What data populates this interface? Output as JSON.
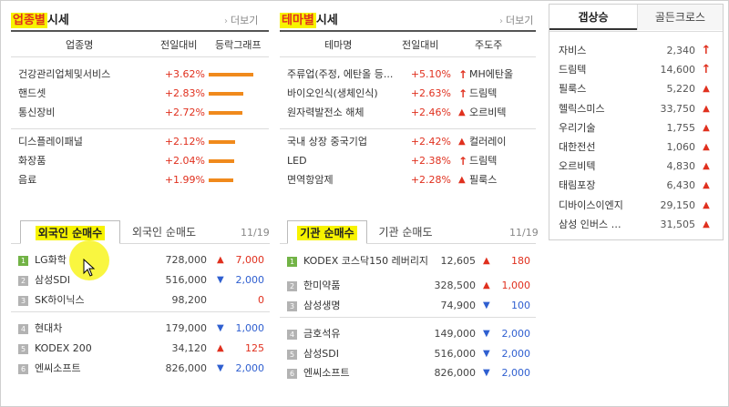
{
  "sector": {
    "title": "업종별시세",
    "title_hl": "업종별",
    "title_rest": "시세",
    "more": "더보기",
    "columns": [
      "업종명",
      "전일대비",
      "등락그래프"
    ],
    "rows": [
      {
        "name": "건강관리업체및서비스",
        "change": "+3.62%",
        "level": 0.94
      },
      {
        "name": "핸드셋",
        "change": "+2.83%",
        "level": 0.74
      },
      {
        "name": "통신장비",
        "change": "+2.72%",
        "level": 0.71
      },
      {
        "name": "디스플레이패널",
        "change": "+2.12%",
        "level": 0.55
      },
      {
        "name": "화장품",
        "change": "+2.04%",
        "level": 0.53
      },
      {
        "name": "음료",
        "change": "+1.99%",
        "level": 0.52
      }
    ]
  },
  "theme": {
    "title_hl": "테마별",
    "title_rest": "시세",
    "more": "더보기",
    "columns": [
      "테마명",
      "전일대비",
      "주도주"
    ],
    "rows": [
      {
        "name": "주류업(주정, 에탄올 등...",
        "change": "+5.10%",
        "icon": "arrow-up",
        "leader": "MH에탄올"
      },
      {
        "name": "바이오인식(생체인식)",
        "change": "+2.63%",
        "icon": "arrow-up",
        "leader": "드림텍"
      },
      {
        "name": "원자력발전소 해체",
        "change": "+2.46%",
        "icon": "triangle-up",
        "leader": "오르비텍"
      },
      {
        "name": "국내 상장 중국기업",
        "change": "+2.42%",
        "icon": "triangle-up",
        "leader": "컬러레이"
      },
      {
        "name": "LED",
        "change": "+2.38%",
        "icon": "arrow-up",
        "leader": "드림텍"
      },
      {
        "name": "면역항암제",
        "change": "+2.28%",
        "icon": "triangle-up",
        "leader": "필룩스"
      }
    ]
  },
  "foreign": {
    "tabs": [
      "외국인 순매수",
      "외국인 순매도"
    ],
    "date": "11/19",
    "rows": [
      {
        "rank": "1",
        "name": "LG화학",
        "price": "728,000",
        "dir": "up",
        "change": "7,000"
      },
      {
        "rank": "2",
        "name": "삼성SDI",
        "price": "516,000",
        "dir": "down",
        "change": "2,000"
      },
      {
        "rank": "3",
        "name": "SK하이닉스",
        "price": "98,200",
        "dir": "flat",
        "change": "0"
      },
      {
        "rank": "4",
        "name": "현대차",
        "price": "179,000",
        "dir": "down",
        "change": "1,000"
      },
      {
        "rank": "5",
        "name": "KODEX 200",
        "price": "34,120",
        "dir": "up",
        "change": "125"
      },
      {
        "rank": "6",
        "name": "엔씨소프트",
        "price": "826,000",
        "dir": "down",
        "change": "2,000"
      }
    ]
  },
  "institution": {
    "tabs": [
      "기관 순매수",
      "기관 순매도"
    ],
    "date": "11/19",
    "rows": [
      {
        "rank": "1",
        "name": "KODEX 코스닥150 레버리지",
        "price": "12,605",
        "dir": "up",
        "change": "180"
      },
      {
        "rank": "2",
        "name": "한미약품",
        "price": "328,500",
        "dir": "up",
        "change": "1,000"
      },
      {
        "rank": "3",
        "name": "삼성생명",
        "price": "74,900",
        "dir": "down",
        "change": "100"
      },
      {
        "rank": "4",
        "name": "금호석유",
        "price": "149,000",
        "dir": "down",
        "change": "2,000"
      },
      {
        "rank": "5",
        "name": "삼성SDI",
        "price": "516,000",
        "dir": "down",
        "change": "2,000"
      },
      {
        "rank": "6",
        "name": "엔씨소프트",
        "price": "826,000",
        "dir": "down",
        "change": "2,000"
      }
    ]
  },
  "side": {
    "tabs": [
      "갭상승",
      "골든크로스"
    ],
    "rows": [
      {
        "name": "자비스",
        "price": "2,340",
        "icon": "arrow-up"
      },
      {
        "name": "드림텍",
        "price": "14,600",
        "icon": "arrow-up"
      },
      {
        "name": "필룩스",
        "price": "5,220",
        "icon": "triangle-up"
      },
      {
        "name": "헬릭스미스",
        "price": "33,750",
        "icon": "triangle-up"
      },
      {
        "name": "우리기술",
        "price": "1,755",
        "icon": "triangle-up"
      },
      {
        "name": "대한전선",
        "price": "1,060",
        "icon": "triangle-up"
      },
      {
        "name": "오르비텍",
        "price": "4,830",
        "icon": "triangle-up"
      },
      {
        "name": "태림포장",
        "price": "6,430",
        "icon": "triangle-up"
      },
      {
        "name": "디바이스이엔지",
        "price": "29,150",
        "icon": "triangle-up"
      },
      {
        "name": "삼성 인버스 …",
        "price": "31,505",
        "icon": "triangle-up"
      }
    ]
  },
  "colors": {
    "up": "#e0301e",
    "down": "#2f5fd0",
    "bar": "#f08a1c",
    "highlight": "#f7f300"
  }
}
